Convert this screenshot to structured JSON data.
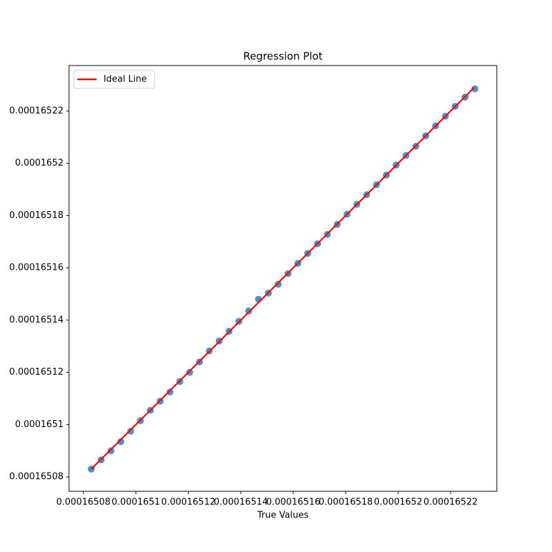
{
  "chart_data": {
    "type": "scatter",
    "title": "Regression Plot",
    "x_label": "True Values",
    "xlim": [
      0.0001650745,
      0.0001652376
    ],
    "ylim": [
      0.0001650745,
      0.0001652374
    ],
    "xticks": [
      0.00016508,
      0.0001651,
      0.00016512,
      0.00016514,
      0.00016516,
      0.00016518,
      0.0001652,
      0.00016522
    ],
    "yticks": [
      0.00016508,
      0.0001651,
      0.00016512,
      0.00016514,
      0.00016516,
      0.00016518,
      0.0001652,
      0.00016522
    ],
    "legend": "upper left",
    "series": [
      {
        "type": "scatter",
        "color": "#1f77b4",
        "x": [
          0.000165083,
          0.00016508675,
          0.0001650905,
          0.00016509425,
          0.000165098,
          0.00016510175,
          0.0001651055,
          0.00016510925,
          0.000165113,
          0.00016511675,
          0.0001651205,
          0.00016512425,
          0.000165128,
          0.00016513175,
          0.0001651355,
          0.00016513925,
          0.000165143,
          0.00016514675,
          0.0001651505,
          0.00016515425,
          0.000165158,
          0.00016516175,
          0.0001651655,
          0.00016516925,
          0.000165173,
          0.00016517675,
          0.0001651805,
          0.00016518425,
          0.000165188,
          0.00016519175,
          0.0001651955,
          0.00016519925,
          0.000165203,
          0.00016520675,
          0.0001652105,
          0.00016521425,
          0.000165218,
          0.00016522175,
          0.0001652255,
          0.00016522925
        ],
        "y": [
          0.000165083,
          0.0001650865,
          0.00016509,
          0.0001650935,
          0.0001650975,
          0.0001651015,
          0.0001651055,
          0.000165109,
          0.0001651125,
          0.0001651165,
          0.00016512,
          0.000165124,
          0.0001651282,
          0.000165132,
          0.0001651357,
          0.0001651395,
          0.0001651435,
          0.000165148,
          0.0001651503,
          0.0001651537,
          0.0001651578,
          0.0001651617,
          0.0001651655,
          0.0001651692,
          0.0001651728,
          0.0001651766,
          0.0001651805,
          0.0001651843,
          0.000165188,
          0.0001651918,
          0.0001651955,
          0.0001651993,
          0.000165203,
          0.0001652065,
          0.0001652105,
          0.0001652143,
          0.000165218,
          0.0001652218,
          0.0001652253,
          0.0001652285
        ]
      },
      {
        "type": "line",
        "name": "Ideal Line",
        "color": "#ff0000",
        "x": [
          0.000165083,
          0.000165229
        ],
        "y": [
          0.000165083,
          0.000165229
        ]
      }
    ]
  }
}
